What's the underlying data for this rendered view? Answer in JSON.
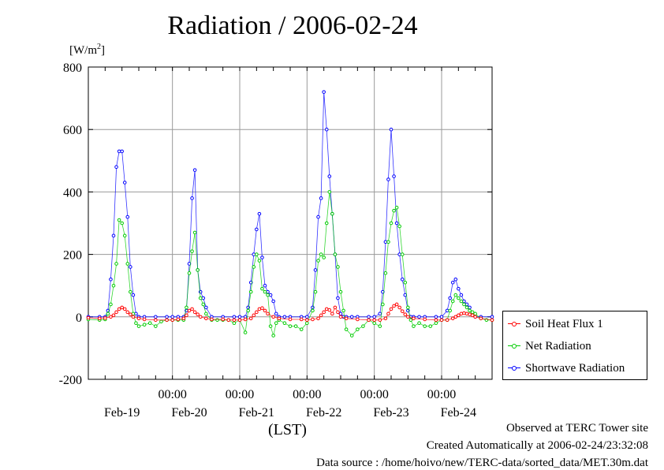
{
  "chart_data": {
    "type": "scatter",
    "title": "Radiation / 2006-02-24",
    "ylabel_base": "[W/m",
    "ylabel_sup": "2",
    "ylabel_tail": "]",
    "xlabel": "(LST)",
    "ylim": [
      -200,
      800
    ],
    "yticks": [
      -200,
      0,
      200,
      400,
      600,
      800
    ],
    "xlim": [
      0,
      144
    ],
    "xticks_time": [
      {
        "x": 30,
        "label": "00:00"
      },
      {
        "x": 54,
        "label": "00:00"
      },
      {
        "x": 78,
        "label": "00:00"
      },
      {
        "x": 102,
        "label": "00:00"
      },
      {
        "x": 126,
        "label": "00:00"
      }
    ],
    "xticks_day": [
      {
        "x": 12,
        "label": "Feb-19"
      },
      {
        "x": 36,
        "label": "Feb-20"
      },
      {
        "x": 60,
        "label": "Feb-21"
      },
      {
        "x": 84,
        "label": "Feb-22"
      },
      {
        "x": 108,
        "label": "Feb-23"
      },
      {
        "x": 132,
        "label": "Feb-24"
      }
    ],
    "grid": true,
    "legend_position": "right",
    "series": [
      {
        "name": "Soil Heat Flux 1",
        "color": "#ff0000",
        "x": [
          0,
          4,
          6,
          8,
          9,
          10,
          11,
          12,
          13,
          14,
          15,
          16,
          18,
          20,
          24,
          28,
          30,
          32,
          34,
          35,
          36,
          37,
          38,
          39,
          40,
          42,
          44,
          48,
          50,
          52,
          54,
          56,
          58,
          59,
          60,
          61,
          62,
          63,
          64,
          66,
          68,
          72,
          76,
          78,
          80,
          82,
          83,
          84,
          85,
          86,
          87,
          88,
          89,
          90,
          92,
          96,
          100,
          102,
          104,
          106,
          107,
          108,
          109,
          110,
          111,
          112,
          113,
          114,
          116,
          120,
          124,
          126,
          128,
          130,
          131,
          132,
          133,
          134,
          135,
          136,
          137,
          138,
          140,
          144
        ],
        "values": [
          -3,
          -5,
          -4,
          0,
          5,
          15,
          25,
          30,
          25,
          15,
          8,
          0,
          -5,
          -8,
          -10,
          -10,
          -10,
          -8,
          -5,
          5,
          20,
          25,
          15,
          8,
          0,
          -5,
          -8,
          -8,
          -10,
          -10,
          -10,
          -8,
          -5,
          5,
          15,
          25,
          28,
          20,
          10,
          0,
          -5,
          -8,
          -8,
          -10,
          -8,
          -5,
          5,
          15,
          25,
          22,
          10,
          30,
          15,
          0,
          -5,
          -8,
          -10,
          -10,
          -10,
          -5,
          10,
          25,
          35,
          40,
          30,
          18,
          8,
          0,
          -5,
          -8,
          -10,
          -10,
          -10,
          -5,
          0,
          5,
          10,
          12,
          10,
          8,
          5,
          0,
          -5,
          -10
        ]
      },
      {
        "name": "Net Radiation",
        "color": "#00cc00",
        "x": [
          0,
          4,
          6,
          7,
          8,
          9,
          10,
          11,
          12,
          13,
          14,
          15,
          16,
          17,
          18,
          20,
          22,
          24,
          26,
          28,
          30,
          32,
          34,
          35,
          36,
          37,
          38,
          39,
          40,
          41,
          42,
          44,
          46,
          48,
          50,
          52,
          54,
          56,
          57,
          58,
          59,
          60,
          61,
          62,
          63,
          64,
          65,
          66,
          67,
          68,
          70,
          72,
          74,
          76,
          78,
          80,
          81,
          82,
          83,
          84,
          85,
          86,
          87,
          88,
          89,
          90,
          91,
          92,
          94,
          96,
          98,
          100,
          102,
          104,
          105,
          106,
          107,
          108,
          109,
          110,
          111,
          112,
          113,
          114,
          115,
          116,
          118,
          120,
          122,
          124,
          126,
          128,
          129,
          130,
          131,
          132,
          133,
          134,
          135,
          136,
          137,
          138,
          140,
          142,
          144
        ],
        "values": [
          -8,
          -10,
          -8,
          10,
          40,
          100,
          170,
          310,
          300,
          260,
          170,
          80,
          10,
          -20,
          -30,
          -25,
          -20,
          -30,
          -15,
          -10,
          -10,
          -10,
          -10,
          30,
          140,
          210,
          270,
          150,
          60,
          40,
          10,
          -10,
          -10,
          -10,
          -10,
          -20,
          -10,
          -50,
          20,
          80,
          160,
          200,
          180,
          90,
          80,
          70,
          -30,
          -60,
          -20,
          -10,
          -20,
          -30,
          -30,
          -40,
          -20,
          20,
          80,
          180,
          200,
          190,
          300,
          400,
          330,
          200,
          160,
          80,
          20,
          -40,
          -60,
          -40,
          -30,
          -10,
          -20,
          -30,
          40,
          140,
          240,
          300,
          340,
          350,
          290,
          200,
          110,
          30,
          -10,
          -30,
          -20,
          -30,
          -30,
          -20,
          -10,
          -10,
          20,
          50,
          70,
          60,
          50,
          40,
          30,
          20,
          15,
          10,
          -5,
          -10,
          -10
        ]
      },
      {
        "name": "Shortwave Radiation",
        "color": "#0000ff",
        "x": [
          0,
          4,
          6,
          7,
          8,
          9,
          10,
          11,
          12,
          13,
          14,
          15,
          16,
          17,
          18,
          20,
          24,
          28,
          30,
          32,
          34,
          35,
          36,
          37,
          38,
          39,
          40,
          41,
          42,
          44,
          48,
          52,
          54,
          56,
          57,
          58,
          59,
          60,
          61,
          62,
          63,
          64,
          65,
          66,
          67,
          68,
          70,
          72,
          76,
          78,
          80,
          81,
          82,
          83,
          84,
          85,
          86,
          87,
          88,
          89,
          90,
          91,
          92,
          94,
          96,
          100,
          102,
          104,
          105,
          106,
          107,
          108,
          109,
          110,
          111,
          112,
          113,
          114,
          115,
          116,
          118,
          120,
          124,
          126,
          128,
          129,
          130,
          131,
          132,
          133,
          134,
          135,
          136,
          137,
          138,
          140,
          144
        ],
        "values": [
          0,
          0,
          0,
          20,
          120,
          260,
          480,
          530,
          530,
          430,
          320,
          160,
          70,
          10,
          0,
          0,
          0,
          0,
          0,
          0,
          0,
          20,
          170,
          380,
          470,
          150,
          80,
          60,
          30,
          0,
          0,
          0,
          0,
          0,
          30,
          110,
          200,
          280,
          330,
          190,
          100,
          80,
          70,
          50,
          10,
          0,
          0,
          0,
          0,
          0,
          30,
          150,
          320,
          380,
          720,
          600,
          450,
          330,
          200,
          60,
          10,
          0,
          0,
          0,
          0,
          0,
          0,
          10,
          80,
          240,
          440,
          600,
          450,
          300,
          200,
          120,
          70,
          20,
          0,
          0,
          0,
          0,
          0,
          0,
          20,
          60,
          110,
          120,
          90,
          70,
          50,
          40,
          30,
          10,
          0,
          0,
          0
        ]
      }
    ]
  },
  "legend": {
    "items": [
      {
        "label": "Soil Heat Flux 1",
        "color": "#ff0000"
      },
      {
        "label": "Net Radiation",
        "color": "#00cc00"
      },
      {
        "label": "Shortwave Radiation",
        "color": "#0000ff"
      }
    ]
  },
  "footer": {
    "line1": "Observed at TERC Tower site",
    "line2": "Created Automatically at 2006-02-24/23:32:08",
    "line3": "Data source : /home/hoivo/new/TERC-data/sorted_data/MET.30m.dat"
  }
}
